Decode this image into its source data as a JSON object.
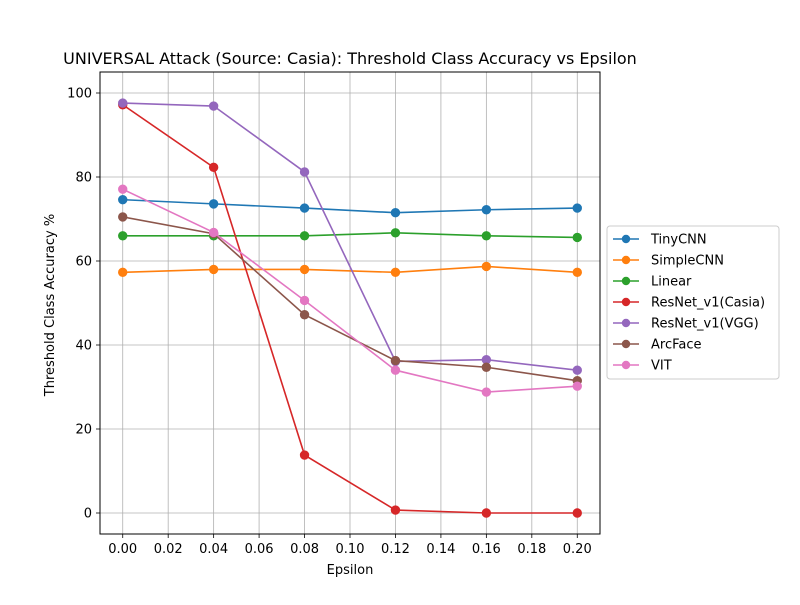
{
  "chart_data": {
    "type": "line",
    "title": "UNIVERSAL Attack (Source: Casia): Threshold Class Accuracy vs Epsilon",
    "xlabel": "Epsilon",
    "ylabel": "Threshold Class Accuracy %",
    "xlim": [
      -0.01,
      0.21
    ],
    "ylim": [
      -5,
      105
    ],
    "x": [
      0.0,
      0.04,
      0.08,
      0.12,
      0.16,
      0.2
    ],
    "xticks": [
      0.0,
      0.02,
      0.04,
      0.06,
      0.08,
      0.1,
      0.12,
      0.14,
      0.16,
      0.18,
      0.2
    ],
    "xtick_labels": [
      "0.00",
      "0.02",
      "0.04",
      "0.06",
      "0.08",
      "0.10",
      "0.12",
      "0.14",
      "0.16",
      "0.18",
      "0.20"
    ],
    "yticks": [
      0,
      20,
      40,
      60,
      80,
      100
    ],
    "ytick_labels": [
      "0",
      "20",
      "40",
      "60",
      "80",
      "100"
    ],
    "grid": true,
    "legend_position": "right, outside plot",
    "series": [
      {
        "name": "TinyCNN",
        "color": "#1f77b4",
        "values": [
          74.6,
          73.6,
          72.6,
          71.5,
          72.2,
          72.6
        ]
      },
      {
        "name": "SimpleCNN",
        "color": "#ff7f0e",
        "values": [
          57.3,
          58.0,
          58.0,
          57.3,
          58.7,
          57.3
        ]
      },
      {
        "name": "Linear",
        "color": "#2ca02c",
        "values": [
          66.0,
          66.0,
          66.0,
          66.7,
          66.0,
          65.6
        ]
      },
      {
        "name": "ResNet_v1(Casia)",
        "color": "#d62728",
        "values": [
          97.2,
          82.3,
          13.8,
          0.7,
          0.0,
          0.0
        ]
      },
      {
        "name": "ResNet_v1(VGG)",
        "color": "#9467bd",
        "values": [
          97.6,
          96.9,
          81.2,
          36.1,
          36.5,
          34.0
        ]
      },
      {
        "name": "ArcFace",
        "color": "#8c564b",
        "values": [
          70.5,
          66.5,
          47.2,
          36.3,
          34.7,
          31.5
        ]
      },
      {
        "name": "VIT",
        "color": "#e377c2",
        "values": [
          77.1,
          66.8,
          50.6,
          34.0,
          28.8,
          30.2
        ]
      }
    ]
  }
}
